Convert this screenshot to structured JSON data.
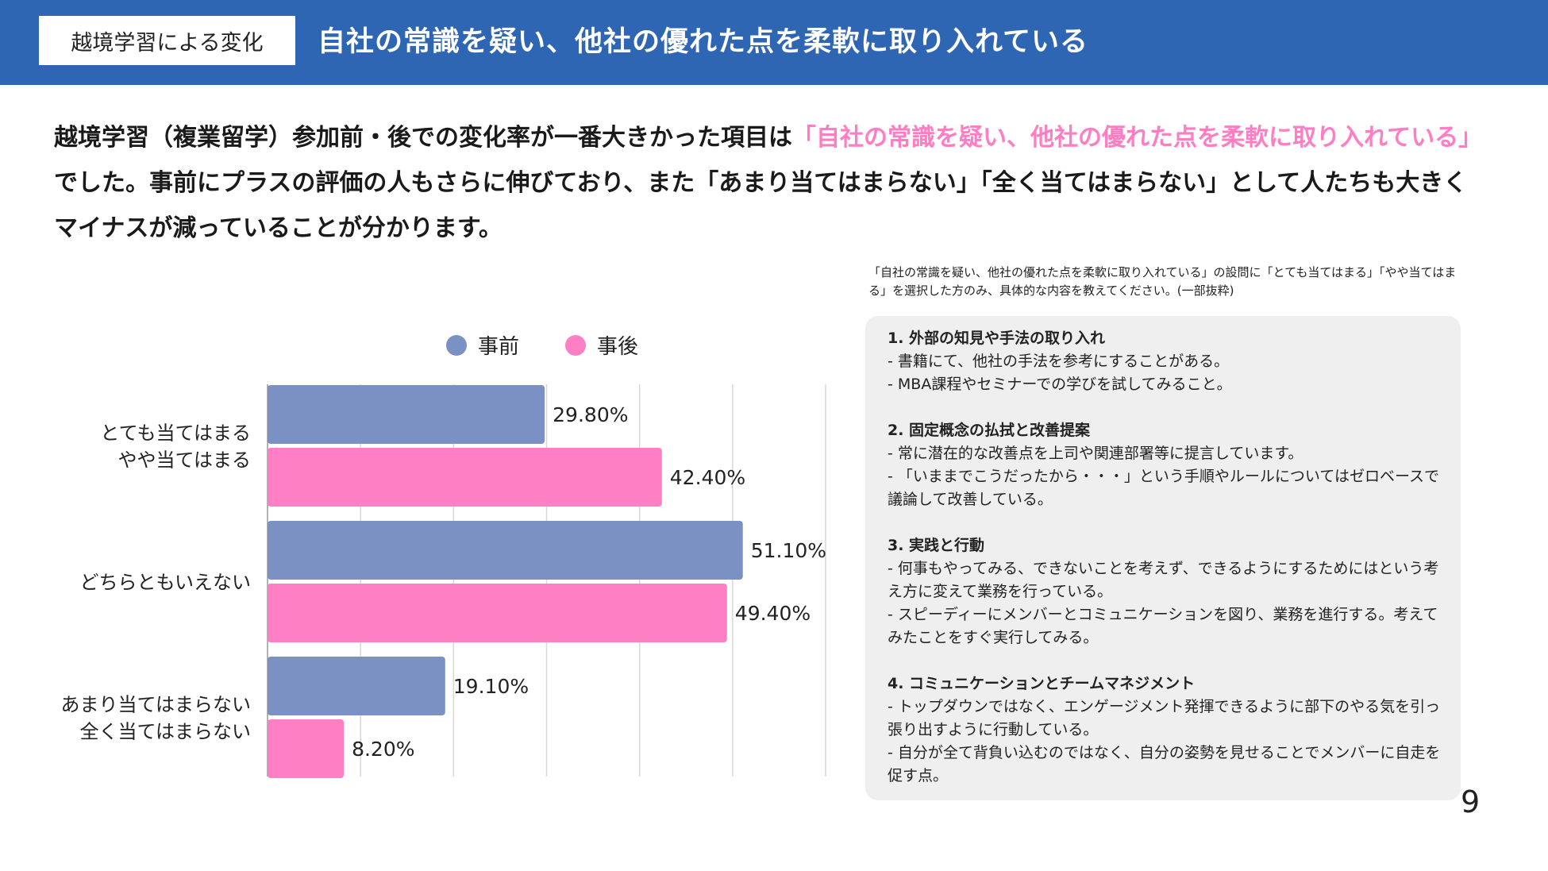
{
  "header": {
    "tag": "越境学習による変化",
    "title": "自社の常識を疑い、他社の優れた点を柔軟に取り入れている"
  },
  "intro": {
    "part1": "越境学習（複業留学）参加前・後での変化率が一番大きかった項目は",
    "highlight": "「自社の常識を疑い、他社の優れた点を柔軟に取り入れている」",
    "part2": "でした。事前にプラスの評価の人もさらに伸びており、また「あまり当てはまらない」「全く当てはまらない」として人たちも大きくマイナスが減っていることが分かります。"
  },
  "chart_data": {
    "type": "bar",
    "orientation": "horizontal",
    "categories": [
      "とても当てはまる\nやや当てはまる",
      "どちらともいえない",
      "あまり当てはまらない\n全く当てはまらない"
    ],
    "series": [
      {
        "name": "事前",
        "color": "#7b91c4",
        "values": [
          29.8,
          51.1,
          19.1
        ],
        "labels": [
          "29.80%",
          "51.10%",
          "19.10%"
        ]
      },
      {
        "name": "事後",
        "color": "#ff7fc4",
        "values": [
          42.4,
          49.4,
          8.2
        ],
        "labels": [
          "42.40%",
          "49.40%",
          "8.20%"
        ]
      }
    ],
    "xlim": [
      0,
      60
    ],
    "grid": true,
    "legend": "top"
  },
  "note": "「自社の常識を疑い、他社の優れた点を柔軟に取り入れている」の設問に「とても当てはまる」「やや当てはまる」を選択した方のみ、具体的な内容を教えてください。(一部抜粋)",
  "panel": {
    "sections": [
      {
        "title": "1. 外部の知見や手法の取り入れ",
        "lines": [
          "- 書籍にて、他社の手法を参考にすることがある。",
          "- MBA課程やセミナーでの学びを試してみること。"
        ]
      },
      {
        "title": "2. 固定概念の払拭と改善提案",
        "lines": [
          "- 常に潜在的な改善点を上司や関連部署等に提言しています。",
          "- 「いままでこうだったから・・・」という手順やルールについてはゼロベースで議論して改善している。"
        ]
      },
      {
        "title": "3. 実践と行動",
        "lines": [
          "- 何事もやってみる、できないことを考えず、できるようにするためにはという考え方に変えて業務を行っている。",
          "- スピーディーにメンバーとコミュニケーションを図り、業務を進行する。考えてみたことをすぐ実行してみる。"
        ]
      },
      {
        "title": "4. コミュニケーションとチームマネジメント",
        "lines": [
          "- トップダウンではなく、エンゲージメント発揮できるように部下のやる気を引っ張り出すように行動している。",
          "- 自分が全て背負い込むのではなく、自分の姿勢を見せることでメンバーに自走を促す点。"
        ]
      }
    ]
  },
  "page_number": "9"
}
